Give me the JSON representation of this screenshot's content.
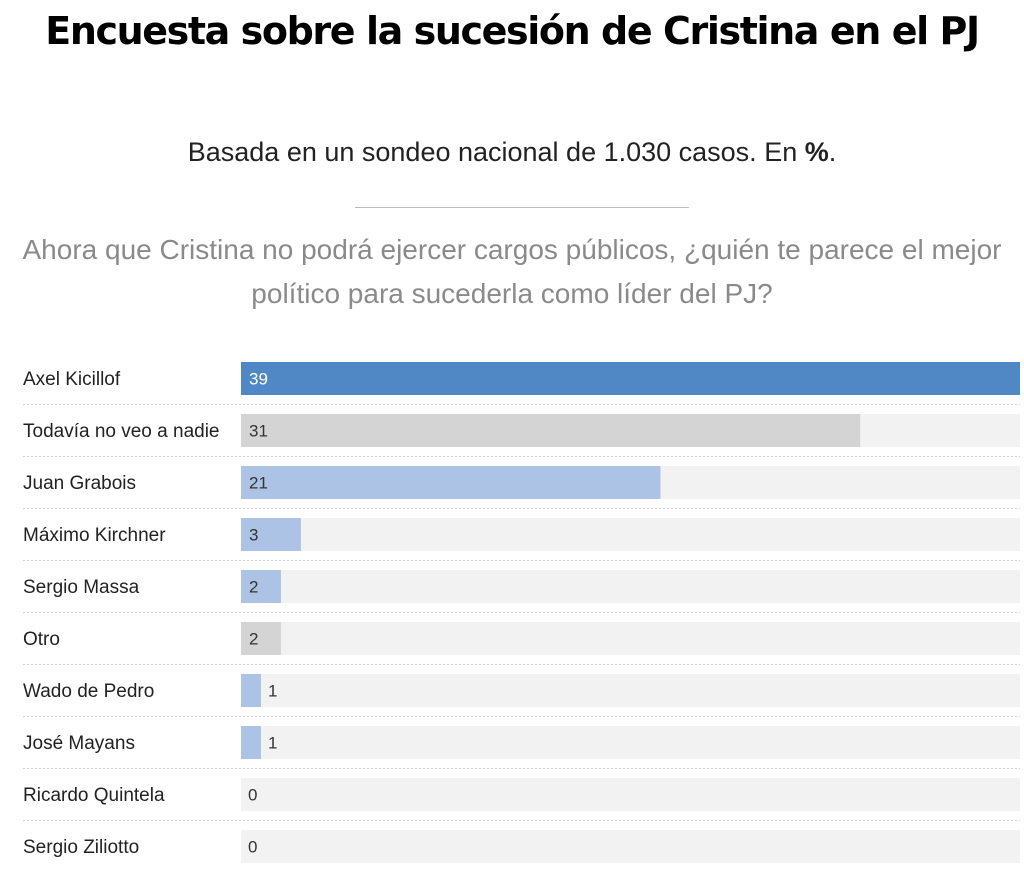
{
  "title": "Encuesta sobre la sucesión de Cristina en el PJ",
  "subtitle": {
    "text": "Basada en un sondeo nacional de 1.030 casos. En ",
    "unit": "%",
    "end": "."
  },
  "question": "Ahora que Cristina no podrá ejercer cargos públicos, ¿quién te parece el mejor político para sucederla como líder del PJ?",
  "colors": {
    "highlight": "#5088c5",
    "light_blue": "#adc3e6",
    "gray": "#d4d4d4",
    "track": "#f2f2f2"
  },
  "chart_data": {
    "type": "bar",
    "orientation": "horizontal",
    "categories": [
      "Axel Kicillof",
      "Todavía no veo a nadie",
      "Juan Grabois",
      "Máximo Kirchner",
      "Sergio Massa",
      "Otro",
      "Wado de Pedro",
      "José Mayans",
      "Ricardo Quintela",
      "Sergio Ziliotto"
    ],
    "values": [
      39,
      31,
      21,
      3,
      2,
      2,
      1,
      1,
      0,
      0
    ],
    "bar_colors": [
      "highlight",
      "gray",
      "light_blue",
      "light_blue",
      "light_blue",
      "gray",
      "light_blue",
      "light_blue",
      "light_blue",
      "light_blue"
    ],
    "xlim": [
      0,
      39
    ],
    "unit": "%",
    "grid": false,
    "legend": "none"
  }
}
